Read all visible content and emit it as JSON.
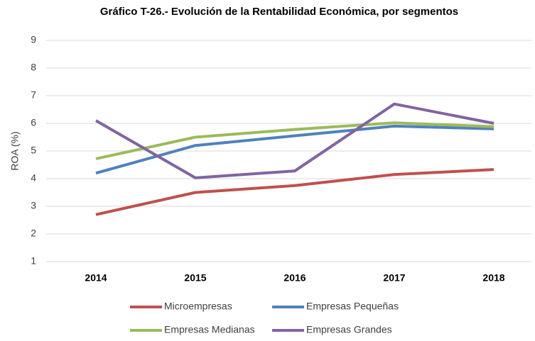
{
  "chart_data": {
    "type": "line",
    "title": "Gráfico T-26.- Evolución de la Rentabilidad Económica, por segmentos",
    "y_label": "ROA (%)",
    "categories": [
      "2014",
      "2015",
      "2016",
      "2017",
      "2018"
    ],
    "series": [
      {
        "name": "Microempresas",
        "color": "#c0504d",
        "values": [
          2.7,
          3.5,
          3.75,
          4.15,
          4.33
        ]
      },
      {
        "name": "Empresas Pequeñas",
        "color": "#4f81bd",
        "values": [
          4.2,
          5.2,
          5.55,
          5.9,
          5.8
        ]
      },
      {
        "name": "Empresas Medianas",
        "color": "#9bbb59",
        "values": [
          4.72,
          5.5,
          5.78,
          6.02,
          5.88
        ]
      },
      {
        "name": "Empresas Grandes",
        "color": "#8064a2",
        "values": [
          6.1,
          4.03,
          4.28,
          6.7,
          6.0
        ]
      }
    ],
    "ylim": [
      1,
      9
    ],
    "yticks": [
      1,
      2,
      3,
      4,
      5,
      6,
      7,
      8,
      9
    ],
    "grid": true,
    "legend": "bottom"
  }
}
